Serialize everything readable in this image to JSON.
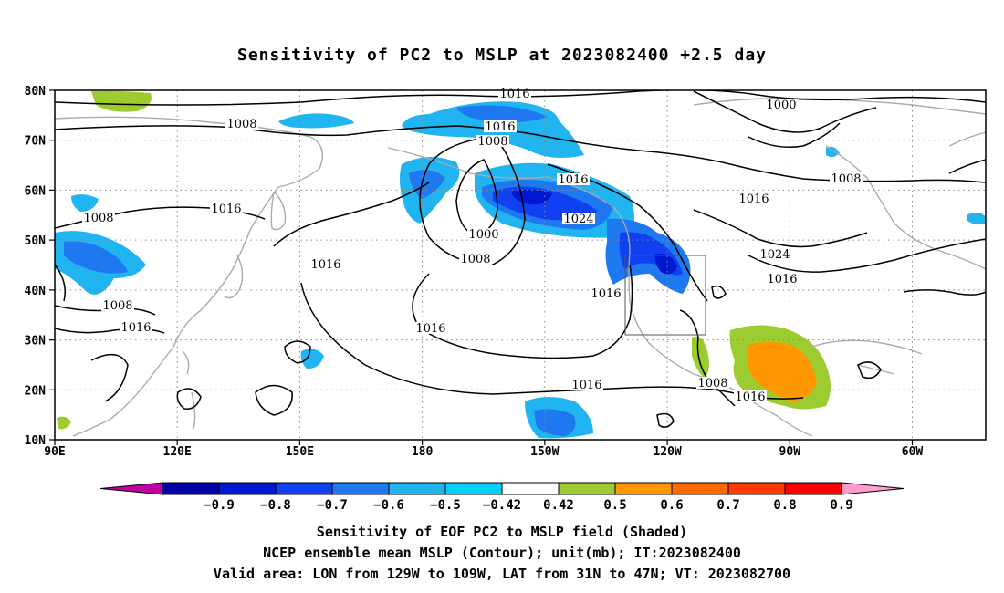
{
  "title": "Sensitivity of PC2 to MSLP at 2023082400 +2.5 day",
  "y_ticks": [
    "80N",
    "70N",
    "60N",
    "50N",
    "40N",
    "30N",
    "20N",
    "10N"
  ],
  "x_ticks": [
    "90E",
    "120E",
    "150E",
    "180",
    "150W",
    "120W",
    "90W",
    "60W"
  ],
  "contour_labels": [
    "1016",
    "1008",
    "1016",
    "1008",
    "1000",
    "1016",
    "1024",
    "1016",
    "1000",
    "1008",
    "1016",
    "1008",
    "1016",
    "1008",
    "1008",
    "1016",
    "1016",
    "1016",
    "1024",
    "1016",
    "1016",
    "1008",
    "1016"
  ],
  "colorbar": {
    "colors": [
      "#c000a0",
      "#0000a8",
      "#0018d0",
      "#1040f0",
      "#1e78f0",
      "#20b4f0",
      "#00d2ff",
      "#ffffff",
      "#9ccc30",
      "#ff9800",
      "#ff6a00",
      "#ff3a00",
      "#ff0000",
      "#ff9ccc"
    ],
    "labels": [
      "−0.9",
      "−0.8",
      "−0.7",
      "−0.6",
      "−0.5",
      "−0.42",
      "0.42",
      "0.5",
      "0.6",
      "0.7",
      "0.8",
      "0.9"
    ]
  },
  "footer": {
    "line1": "Sensitivity of EOF PC2 to MSLP field (Shaded)",
    "line2": "NCEP ensemble mean MSLP (Contour); unit(mb); IT:2023082400",
    "line3": "Valid area: LON from 129W to 109W, LAT from 31N to 47N; VT: 2023082700"
  }
}
